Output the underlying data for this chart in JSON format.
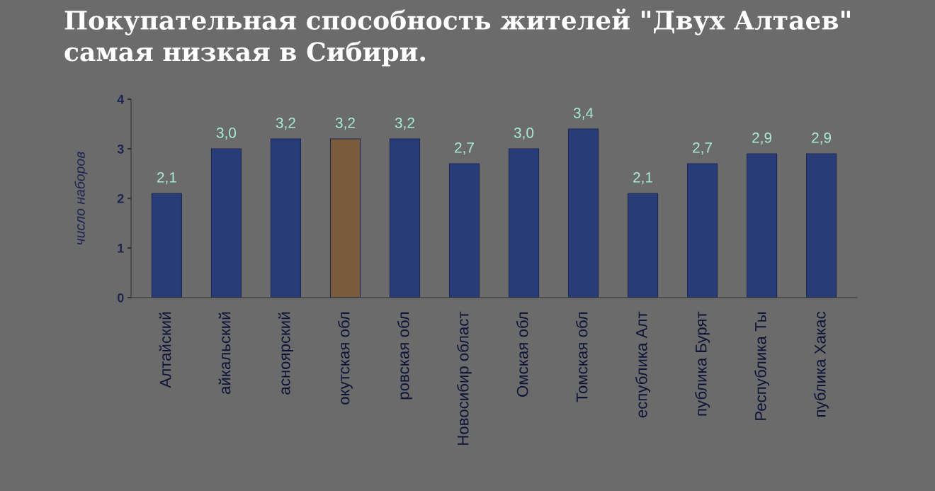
{
  "chart_data": {
    "type": "bar",
    "title": "Покупательная способность жителей \"Двух Алтаев\" самая низкая в Сибири.",
    "ylabel": "число наборов",
    "categories": [
      "Алтайский",
      "айкальский",
      "асноярский",
      "окутская обл",
      "ровская обл",
      "Новосибир област",
      "Омская обл",
      "Томская обл",
      "еспублика Алт",
      "публика Бурят",
      "Республика Ты",
      "публика Хакас"
    ],
    "values": [
      2.1,
      3.0,
      3.2,
      3.2,
      3.2,
      2.7,
      3.0,
      3.4,
      2.1,
      2.7,
      2.9,
      2.9
    ],
    "colors": [
      "#283c78",
      "#283c78",
      "#283c78",
      "#7a5c3c",
      "#283c78",
      "#283c78",
      "#283c78",
      "#283c78",
      "#283c78",
      "#283c78",
      "#283c78",
      "#283c78"
    ],
    "value_labels": [
      "2,1",
      "3,0",
      "3,2",
      "3,2",
      "3,2",
      "2,7",
      "3,0",
      "3,4",
      "2,1",
      "2,7",
      "2,9",
      "2,9"
    ],
    "ylim": [
      0,
      4
    ],
    "yticks": [
      0,
      1,
      2,
      3,
      4
    ],
    "grid": false,
    "legend": false
  }
}
